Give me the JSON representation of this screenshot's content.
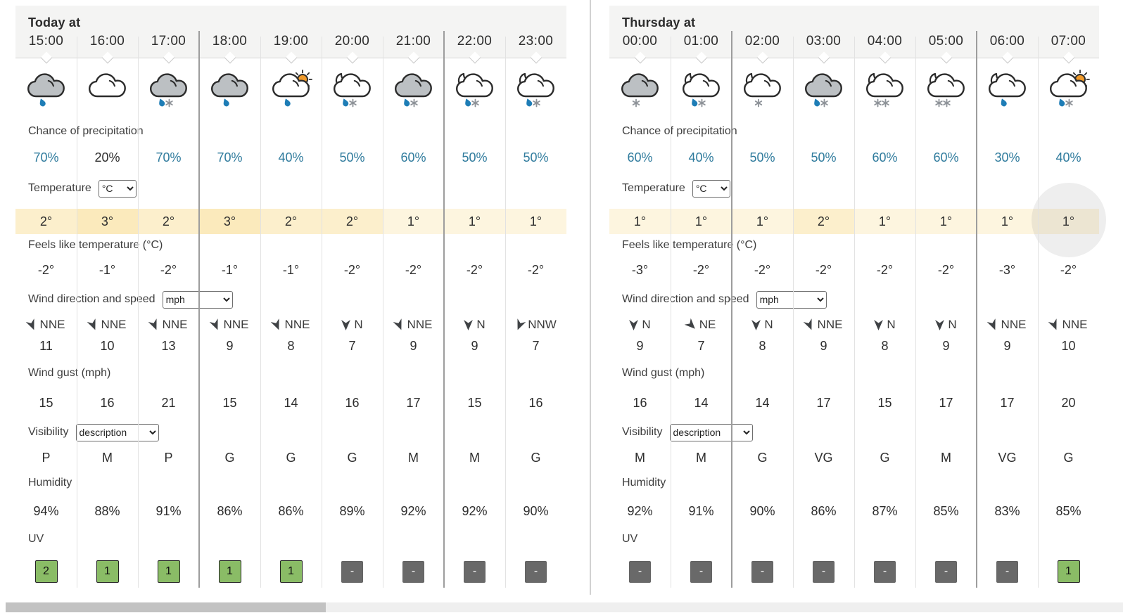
{
  "row_labels": {
    "precip": "Chance of precipitation",
    "temperature": "Temperature",
    "feels_like": "Feels like temperature (°C)",
    "wind": "Wind direction and speed",
    "gust": "Wind gust (mph)",
    "visibility": "Visibility",
    "humidity": "Humidity",
    "uv": "UV"
  },
  "units": {
    "temperature": "°C",
    "wind": "mph",
    "visibility": "description"
  },
  "colors": {
    "precip_blue": "#2f7b9d",
    "temp_band_1": "#fdf5df",
    "temp_band_2": "#fcefcc",
    "temp_band_3": "#fbeabc",
    "uv_green": "#8abc66",
    "uv_gray": "#696969",
    "raindrop_blue": "#1e7db6",
    "snowflake_gray": "#8d9298",
    "sun_orange": "#f09a2a",
    "cloud_gray": "#bcc0c3",
    "header_gray": "#f4f4f3"
  },
  "panels": [
    {
      "title": "Today at",
      "dark_boundaries": [
        3,
        7
      ],
      "columns": [
        {
          "time": "15:00",
          "icon": {
            "name": "light-rain",
            "cloud": "gray",
            "sky": "none",
            "precip": [
              "rain"
            ]
          },
          "precip_pct": "70%",
          "precip_emph": true,
          "temp": "2°",
          "temp_level": 2,
          "feels_like": "-2°",
          "wind_dir": "NNE",
          "wind_speed": "11",
          "gust": "15",
          "visibility": "P",
          "humidity": "94%",
          "uv": "2",
          "uv_active": true
        },
        {
          "time": "16:00",
          "icon": {
            "name": "cloudy",
            "cloud": "white",
            "sky": "none",
            "precip": []
          },
          "precip_pct": "20%",
          "precip_emph": false,
          "temp": "3°",
          "temp_level": 3,
          "feels_like": "-1°",
          "wind_dir": "NNE",
          "wind_speed": "10",
          "gust": "16",
          "visibility": "M",
          "humidity": "88%",
          "uv": "1",
          "uv_active": true
        },
        {
          "time": "17:00",
          "icon": {
            "name": "sleet",
            "cloud": "gray",
            "sky": "none",
            "precip": [
              "rain",
              "snow"
            ]
          },
          "precip_pct": "70%",
          "precip_emph": true,
          "temp": "2°",
          "temp_level": 2,
          "feels_like": "-2°",
          "wind_dir": "NNE",
          "wind_speed": "13",
          "gust": "21",
          "visibility": "P",
          "humidity": "91%",
          "uv": "1",
          "uv_active": true
        },
        {
          "time": "18:00",
          "icon": {
            "name": "light-rain",
            "cloud": "gray",
            "sky": "none",
            "precip": [
              "rain"
            ]
          },
          "precip_pct": "70%",
          "precip_emph": true,
          "temp": "3°",
          "temp_level": 3,
          "feels_like": "-1°",
          "wind_dir": "NNE",
          "wind_speed": "9",
          "gust": "15",
          "visibility": "G",
          "humidity": "86%",
          "uv": "1",
          "uv_active": true
        },
        {
          "time": "19:00",
          "icon": {
            "name": "light-rain-shower-day",
            "cloud": "white",
            "sky": "sun",
            "precip": [
              "rain"
            ]
          },
          "precip_pct": "40%",
          "precip_emph": true,
          "temp": "2°",
          "temp_level": 2,
          "feels_like": "-1°",
          "wind_dir": "NNE",
          "wind_speed": "8",
          "gust": "14",
          "visibility": "G",
          "humidity": "86%",
          "uv": "1",
          "uv_active": true
        },
        {
          "time": "20:00",
          "icon": {
            "name": "sleet-shower-night",
            "cloud": "white",
            "sky": "moon",
            "precip": [
              "rain",
              "snow"
            ]
          },
          "precip_pct": "50%",
          "precip_emph": true,
          "temp": "2°",
          "temp_level": 2,
          "feels_like": "-2°",
          "wind_dir": "N",
          "wind_speed": "7",
          "gust": "16",
          "visibility": "G",
          "humidity": "89%",
          "uv": "-",
          "uv_active": false
        },
        {
          "time": "21:00",
          "icon": {
            "name": "sleet",
            "cloud": "gray",
            "sky": "none",
            "precip": [
              "rain",
              "snow"
            ]
          },
          "precip_pct": "60%",
          "precip_emph": true,
          "temp": "1°",
          "temp_level": 1,
          "feels_like": "-2°",
          "wind_dir": "NNE",
          "wind_speed": "9",
          "gust": "17",
          "visibility": "M",
          "humidity": "92%",
          "uv": "-",
          "uv_active": false
        },
        {
          "time": "22:00",
          "icon": {
            "name": "sleet-shower-night",
            "cloud": "white",
            "sky": "moon",
            "precip": [
              "rain",
              "snow"
            ]
          },
          "precip_pct": "50%",
          "precip_emph": true,
          "temp": "1°",
          "temp_level": 1,
          "feels_like": "-2°",
          "wind_dir": "N",
          "wind_speed": "9",
          "gust": "15",
          "visibility": "M",
          "humidity": "92%",
          "uv": "-",
          "uv_active": false
        },
        {
          "time": "23:00",
          "icon": {
            "name": "sleet-shower-night",
            "cloud": "white",
            "sky": "moon",
            "precip": [
              "rain",
              "snow"
            ]
          },
          "precip_pct": "50%",
          "precip_emph": true,
          "temp": "1°",
          "temp_level": 1,
          "feels_like": "-2°",
          "wind_dir": "NNW",
          "wind_speed": "7",
          "gust": "16",
          "visibility": "G",
          "humidity": "90%",
          "uv": "-",
          "uv_active": false
        }
      ]
    },
    {
      "title": "Thursday at",
      "dark_boundaries": [
        2,
        6
      ],
      "columns": [
        {
          "time": "00:00",
          "icon": {
            "name": "light-snow",
            "cloud": "gray",
            "sky": "none",
            "precip": [
              "snow"
            ]
          },
          "precip_pct": "60%",
          "precip_emph": true,
          "temp": "1°",
          "temp_level": 1,
          "feels_like": "-3°",
          "wind_dir": "N",
          "wind_speed": "9",
          "gust": "16",
          "visibility": "M",
          "humidity": "92%",
          "uv": "-",
          "uv_active": false
        },
        {
          "time": "01:00",
          "icon": {
            "name": "sleet-shower-night",
            "cloud": "white",
            "sky": "moon",
            "precip": [
              "rain",
              "snow"
            ]
          },
          "precip_pct": "40%",
          "precip_emph": true,
          "temp": "1°",
          "temp_level": 1,
          "feels_like": "-2°",
          "wind_dir": "NE",
          "wind_speed": "7",
          "gust": "14",
          "visibility": "M",
          "humidity": "91%",
          "uv": "-",
          "uv_active": false
        },
        {
          "time": "02:00",
          "icon": {
            "name": "light-snow-shower-night",
            "cloud": "white",
            "sky": "moon",
            "precip": [
              "snow"
            ]
          },
          "precip_pct": "50%",
          "precip_emph": true,
          "temp": "1°",
          "temp_level": 1,
          "feels_like": "-2°",
          "wind_dir": "N",
          "wind_speed": "8",
          "gust": "14",
          "visibility": "G",
          "humidity": "90%",
          "uv": "-",
          "uv_active": false
        },
        {
          "time": "03:00",
          "icon": {
            "name": "sleet",
            "cloud": "gray",
            "sky": "none",
            "precip": [
              "rain",
              "snow"
            ]
          },
          "precip_pct": "50%",
          "precip_emph": true,
          "temp": "2°",
          "temp_level": 2,
          "feels_like": "-2°",
          "wind_dir": "NNE",
          "wind_speed": "9",
          "gust": "17",
          "visibility": "VG",
          "humidity": "86%",
          "uv": "-",
          "uv_active": false
        },
        {
          "time": "04:00",
          "icon": {
            "name": "heavy-snow-shower-night",
            "cloud": "white",
            "sky": "moon",
            "precip": [
              "snow",
              "snow"
            ]
          },
          "precip_pct": "60%",
          "precip_emph": true,
          "temp": "1°",
          "temp_level": 1,
          "feels_like": "-2°",
          "wind_dir": "N",
          "wind_speed": "8",
          "gust": "15",
          "visibility": "G",
          "humidity": "87%",
          "uv": "-",
          "uv_active": false
        },
        {
          "time": "05:00",
          "icon": {
            "name": "heavy-snow-shower-night",
            "cloud": "white",
            "sky": "moon",
            "precip": [
              "snow",
              "snow"
            ]
          },
          "precip_pct": "60%",
          "precip_emph": true,
          "temp": "1°",
          "temp_level": 1,
          "feels_like": "-2°",
          "wind_dir": "N",
          "wind_speed": "9",
          "gust": "17",
          "visibility": "M",
          "humidity": "85%",
          "uv": "-",
          "uv_active": false
        },
        {
          "time": "06:00",
          "icon": {
            "name": "light-rain-shower-night",
            "cloud": "white",
            "sky": "moon",
            "precip": [
              "rain"
            ]
          },
          "precip_pct": "30%",
          "precip_emph": true,
          "temp": "1°",
          "temp_level": 1,
          "feels_like": "-3°",
          "wind_dir": "NNE",
          "wind_speed": "9",
          "gust": "17",
          "visibility": "VG",
          "humidity": "83%",
          "uv": "-",
          "uv_active": false
        },
        {
          "time": "07:00",
          "icon": {
            "name": "sleet-shower-day",
            "cloud": "white",
            "sky": "sun",
            "precip": [
              "rain",
              "snow"
            ]
          },
          "precip_pct": "40%",
          "precip_emph": true,
          "temp": "1°",
          "temp_level": 1,
          "feels_like": "-2°",
          "wind_dir": "NNE",
          "wind_speed": "10",
          "gust": "20",
          "visibility": "G",
          "humidity": "85%",
          "uv": "1",
          "uv_active": true,
          "highlight": true
        }
      ]
    }
  ]
}
